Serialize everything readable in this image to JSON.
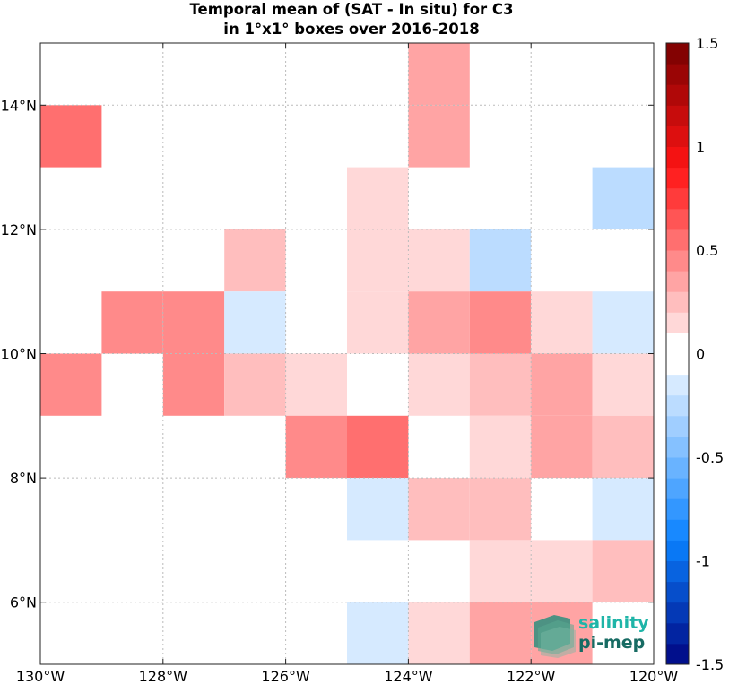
{
  "chart_data": {
    "type": "heatmap",
    "title": [
      "Temporal mean of (SAT - In situ) for C3",
      "in 1°x1° boxes over 2016-2018"
    ],
    "xlabel": "",
    "ylabel": "",
    "xlim": [
      -130,
      -120
    ],
    "ylim": [
      5,
      15
    ],
    "x_ticks": [
      -130,
      -128,
      -126,
      -124,
      -122,
      -120
    ],
    "x_tick_labels": [
      "130°W",
      "128°W",
      "126°W",
      "124°W",
      "122°W",
      "120°W"
    ],
    "y_ticks": [
      6,
      8,
      10,
      12,
      14
    ],
    "y_tick_labels": [
      "6°N",
      "8°N",
      "10°N",
      "12°N",
      "14°N"
    ],
    "grid": true,
    "colorbar": {
      "range": [
        -1.5,
        1.5
      ],
      "step": 0.1,
      "ticks": [
        1.5,
        1,
        0.5,
        0,
        -0.5,
        -1,
        -1.5
      ],
      "tick_labels": [
        "1.5",
        "1",
        "0.5",
        "0",
        "-0.5",
        "-1",
        "-1.5"
      ]
    },
    "cells": [
      {
        "lon": -130,
        "lat": 13,
        "value": 0.55
      },
      {
        "lon": -124,
        "lat": 14,
        "value": 0.35
      },
      {
        "lon": -124,
        "lat": 13,
        "value": 0.35
      },
      {
        "lon": -125,
        "lat": 12,
        "value": 0.15
      },
      {
        "lon": -121,
        "lat": 12,
        "value": -0.25
      },
      {
        "lon": -127,
        "lat": 11,
        "value": 0.25
      },
      {
        "lon": -125,
        "lat": 11,
        "value": 0.15
      },
      {
        "lon": -124,
        "lat": 11,
        "value": 0.15
      },
      {
        "lon": -123,
        "lat": 11,
        "value": -0.25
      },
      {
        "lon": -129,
        "lat": 10,
        "value": 0.45
      },
      {
        "lon": -128,
        "lat": 10,
        "value": 0.45
      },
      {
        "lon": -127,
        "lat": 10,
        "value": -0.15
      },
      {
        "lon": -125,
        "lat": 10,
        "value": 0.15
      },
      {
        "lon": -124,
        "lat": 10,
        "value": 0.35
      },
      {
        "lon": -123,
        "lat": 10,
        "value": 0.45
      },
      {
        "lon": -122,
        "lat": 10,
        "value": 0.15
      },
      {
        "lon": -121,
        "lat": 10,
        "value": -0.15
      },
      {
        "lon": -130,
        "lat": 9,
        "value": 0.45
      },
      {
        "lon": -128,
        "lat": 9,
        "value": 0.45
      },
      {
        "lon": -127,
        "lat": 9,
        "value": 0.25
      },
      {
        "lon": -126,
        "lat": 9,
        "value": 0.15
      },
      {
        "lon": -124,
        "lat": 9,
        "value": 0.15
      },
      {
        "lon": -123,
        "lat": 9,
        "value": 0.25
      },
      {
        "lon": -122,
        "lat": 9,
        "value": 0.35
      },
      {
        "lon": -121,
        "lat": 9,
        "value": 0.15
      },
      {
        "lon": -126,
        "lat": 8,
        "value": 0.45
      },
      {
        "lon": -125,
        "lat": 8,
        "value": 0.55
      },
      {
        "lon": -123,
        "lat": 8,
        "value": 0.15
      },
      {
        "lon": -122,
        "lat": 8,
        "value": 0.35
      },
      {
        "lon": -121,
        "lat": 8,
        "value": 0.25
      },
      {
        "lon": -125,
        "lat": 7,
        "value": -0.15
      },
      {
        "lon": -124,
        "lat": 7,
        "value": 0.25
      },
      {
        "lon": -123,
        "lat": 7,
        "value": 0.25
      },
      {
        "lon": -121,
        "lat": 7,
        "value": -0.15
      },
      {
        "lon": -123,
        "lat": 6,
        "value": 0.15
      },
      {
        "lon": -122,
        "lat": 6,
        "value": 0.15
      },
      {
        "lon": -121,
        "lat": 6,
        "value": 0.25
      },
      {
        "lon": -125,
        "lat": 5,
        "value": -0.15
      },
      {
        "lon": -124,
        "lat": 5,
        "value": 0.15
      },
      {
        "lon": -123,
        "lat": 5,
        "value": 0.35
      },
      {
        "lon": -122,
        "lat": 5,
        "value": 0.35
      }
    ]
  },
  "logo": {
    "line1": "salinity",
    "line2": "pi-mep",
    "color1": "#1fb5a8",
    "color2": "#176b63"
  }
}
